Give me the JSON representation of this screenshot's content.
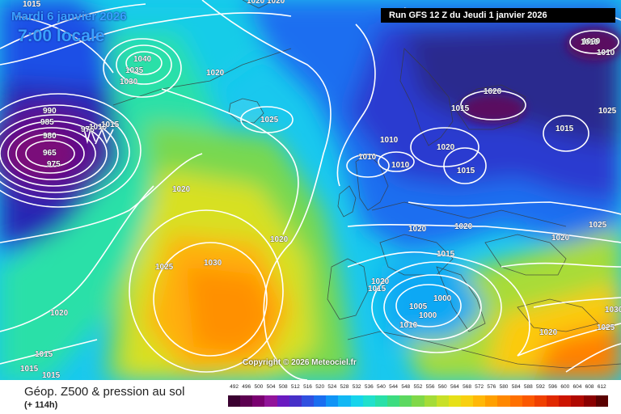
{
  "header": {
    "date": "Mardi 6 janvier 2026",
    "time": "7:00 locale",
    "run": "Run GFS 12 Z du Jeudi 1 janvier 2026"
  },
  "map": {
    "copyright": "Copyright © 2026 Meteociel.fr",
    "pressure_labels": [
      "1015",
      "1020",
      "1040",
      "1035",
      "1030",
      "1020",
      "990",
      "985",
      "980",
      "975",
      "965",
      "975",
      "1010",
      "1015",
      "1025",
      "1020",
      "1020",
      "1025",
      "1020",
      "1010",
      "1010",
      "1010",
      "1020",
      "1015",
      "1015",
      "1020",
      "1020",
      "1025",
      "1020",
      "1015",
      "1020",
      "1015",
      "1000",
      "1005",
      "1000",
      "1010",
      "1020",
      "1025",
      "1030",
      "1030",
      "1025",
      "1020",
      "1015",
      "1015",
      "1015",
      "1020",
      "1010",
      "1010",
      "1015",
      "1020"
    ]
  },
  "footer": {
    "title": "Géop. Z500 & pression au sol",
    "subtitle": "(+ 114h)"
  },
  "scale": {
    "labels": [
      "492",
      "496",
      "500",
      "504",
      "508",
      "512",
      "516",
      "520",
      "524",
      "528",
      "532",
      "536",
      "540",
      "544",
      "548",
      "552",
      "556",
      "560",
      "564",
      "568",
      "572",
      "576",
      "580",
      "584",
      "588",
      "592",
      "596",
      "600",
      "604",
      "608",
      "612"
    ],
    "colors": [
      "#3a0030",
      "#5c0050",
      "#7a0070",
      "#92149a",
      "#6a1ac0",
      "#4630c8",
      "#3050e0",
      "#1a6ef0",
      "#1094f6",
      "#12b8f4",
      "#16d4ec",
      "#20e0cc",
      "#28e0a8",
      "#3cdc80",
      "#5cd860",
      "#80d848",
      "#a4dc38",
      "#c8e028",
      "#e6e018",
      "#f8d010",
      "#ffb808",
      "#ffa000",
      "#ff8800",
      "#ff7000",
      "#fb5800",
      "#f04000",
      "#e02800",
      "#cc1400",
      "#b00800",
      "#8a0000",
      "#5a0000"
    ]
  }
}
